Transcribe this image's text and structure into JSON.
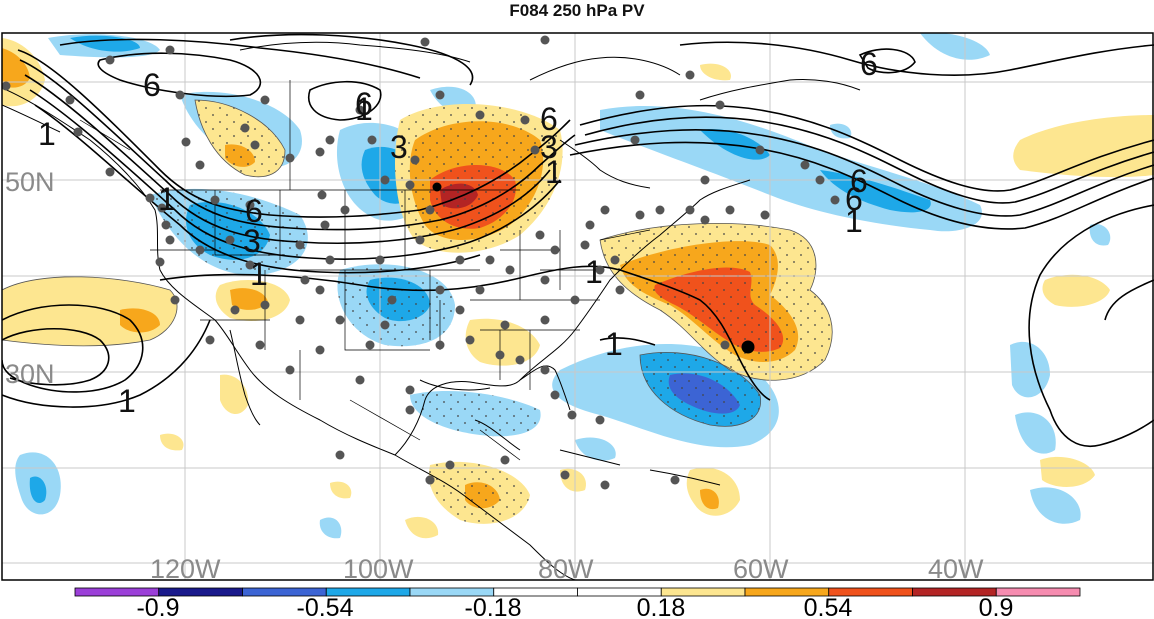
{
  "title": "F084 250 hPa PV",
  "map": {
    "lon_labels": [
      "120W",
      "100W",
      "80W",
      "60W",
      "40W"
    ],
    "lat_labels": [
      "50N",
      "30N"
    ],
    "contour_labels": [
      "6",
      "6",
      "6",
      "6",
      "6",
      "6",
      "6",
      "3",
      "3",
      "3",
      "1",
      "1",
      "1",
      "1",
      "1",
      "1",
      "1",
      "1",
      "1"
    ]
  },
  "colorbar": {
    "colors": [
      "#9b3fd8",
      "#1a1a8c",
      "#3c64d4",
      "#1ea8e8",
      "#9ad8f6",
      "#ffffff",
      "#ffffff",
      "#fde690",
      "#f7a71c",
      "#f0521c",
      "#b32424",
      "#f68cb0"
    ],
    "tick_labels": [
      "-0.9",
      "-0.54",
      "-0.18",
      "0.18",
      "0.54",
      "0.9"
    ]
  },
  "colors": {
    "light_blue": "#9ad8f6",
    "blue": "#1ea8e8",
    "dark_blue": "#3c64d4",
    "light_yellow": "#fde690",
    "orange": "#f7a71c",
    "red_orange": "#f0521c",
    "dark_red": "#b32424"
  }
}
